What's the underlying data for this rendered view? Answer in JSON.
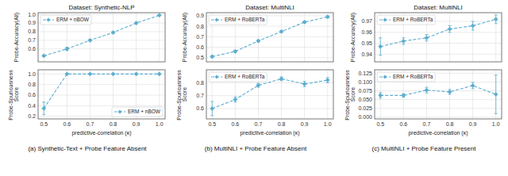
{
  "chart_data": [
    {
      "type": "line",
      "title": "Dataset: Synthetic-NLP",
      "x": [
        0.5,
        0.6,
        0.7,
        0.8,
        0.9,
        1.0
      ],
      "xlim": [
        0.475,
        1.025
      ],
      "xticks": [
        0.5,
        0.6,
        0.7,
        0.8,
        0.9,
        {
          "value": 1.0,
          "label": "1.0"
        }
      ],
      "ylabel": "Probe-Accuracy(All)",
      "ylim": [
        0.45,
        1.02
      ],
      "yticks": [
        0.6,
        0.7,
        0.8,
        0.9,
        {
          "value": 1.0,
          "label": "1.0"
        }
      ],
      "grid": true,
      "legend": "upper left",
      "tick_labels": "y",
      "series": [
        {
          "name": "ERM + nBOW",
          "color": "#5badcf",
          "marker": "diamond",
          "line_style": "dashed",
          "values": [
            0.52,
            0.6,
            0.7,
            0.79,
            0.9,
            0.99
          ],
          "errors": [
            0.01,
            0.02,
            0.01,
            0.01,
            0.01,
            0.005
          ]
        }
      ]
    },
    {
      "type": "line",
      "x": [
        0.5,
        0.6,
        0.7,
        0.8,
        0.9,
        1.0
      ],
      "xlim": [
        0.475,
        1.025
      ],
      "xticks": [
        0.5,
        0.6,
        0.7,
        0.8,
        0.9,
        {
          "value": 1.0,
          "label": "1.0"
        }
      ],
      "xlabel": "predictive-correlation (κ)",
      "ylabel": "Probe-Spuriousness Score",
      "ylim": [
        0.15,
        1.08
      ],
      "yticks": [
        0.2,
        0.4,
        0.6,
        0.8,
        {
          "value": 1.0,
          "label": "1.0"
        }
      ],
      "grid": true,
      "legend": "lower right",
      "annotations": [
        "(a) Synthetic-Text + Probe Feature Absent"
      ],
      "series": [
        {
          "name": "ERM + nBOW",
          "color": "#5badcf",
          "marker": "diamond",
          "line_style": "dashed",
          "values": [
            0.35,
            1.0,
            1.0,
            1.0,
            1.0,
            1.0
          ],
          "errors": [
            0.12,
            0.0,
            0.0,
            0.0,
            0.0,
            0.0
          ]
        }
      ]
    },
    {
      "type": "line",
      "title": "Dataset: MultiNLI",
      "x": [
        0.5,
        0.6,
        0.7,
        0.8,
        0.9,
        1.0
      ],
      "xlim": [
        0.475,
        1.025
      ],
      "xticks": [
        0.5,
        0.6,
        0.7,
        0.8,
        0.9,
        {
          "value": 1.0,
          "label": "1.0"
        }
      ],
      "ylabel": "Probe-Accuracy(All)",
      "ylim": [
        0.46,
        0.93
      ],
      "yticks": [
        0.5,
        0.6,
        0.7,
        0.8,
        0.9
      ],
      "grid": true,
      "legend": "upper left",
      "tick_labels": "y",
      "series": [
        {
          "name": "ERM + RoBERTa",
          "color": "#5badcf",
          "marker": "diamond",
          "line_style": "dashed",
          "values": [
            0.51,
            0.56,
            0.66,
            0.75,
            0.84,
            0.89
          ],
          "errors": [
            0.01,
            0.01,
            0.01,
            0.01,
            0.01,
            0.01
          ]
        }
      ]
    },
    {
      "type": "line",
      "x": [
        0.5,
        0.6,
        0.7,
        0.8,
        0.9,
        1.0
      ],
      "xlim": [
        0.475,
        1.025
      ],
      "xticks": [
        0.5,
        0.6,
        0.7,
        0.8,
        0.9,
        {
          "value": 1.0,
          "label": "1.0"
        }
      ],
      "xlabel": "predictive-correlation (κ)",
      "ylabel": "Probe-Spuriousness Score",
      "ylim": [
        0.52,
        0.9
      ],
      "yticks": [
        0.6,
        0.7,
        0.8
      ],
      "grid": true,
      "legend": "upper left",
      "annotations": [
        "(b) MultiNLI + Probe Feature Absent"
      ],
      "series": [
        {
          "name": "ERM + RoBERTa",
          "color": "#5badcf",
          "marker": "diamond",
          "line_style": "dashed",
          "values": [
            0.6,
            0.67,
            0.78,
            0.83,
            0.79,
            0.82
          ],
          "errors": [
            0.055,
            0.02,
            0.015,
            0.015,
            0.02,
            0.02
          ]
        }
      ]
    },
    {
      "type": "line",
      "title": "Dataset: MultiNLI",
      "x": [
        0.5,
        0.6,
        0.7,
        0.8,
        0.9,
        1.0
      ],
      "xlim": [
        0.475,
        1.025
      ],
      "xticks": [
        0.5,
        0.6,
        0.7,
        0.8,
        0.9,
        {
          "value": 1.0,
          "label": "1.0"
        }
      ],
      "ylabel": "Probe-Accuracy(All)",
      "ylim": [
        0.933,
        0.978
      ],
      "yticks": [
        0.94,
        0.95,
        0.96,
        0.97
      ],
      "grid": true,
      "legend": "upper left",
      "tick_labels": "y",
      "series": [
        {
          "name": "ERM + RoBERTa",
          "color": "#5badcf",
          "marker": "diamond",
          "line_style": "dashed",
          "values": [
            0.947,
            0.952,
            0.955,
            0.963,
            0.966,
            0.972
          ],
          "errors": [
            0.008,
            0.003,
            0.003,
            0.003,
            0.004,
            0.004
          ]
        }
      ]
    },
    {
      "type": "line",
      "x": [
        0.5,
        0.6,
        0.7,
        0.8,
        0.9,
        1.0
      ],
      "xlim": [
        0.475,
        1.025
      ],
      "xticks": [
        0.5,
        0.6,
        0.7,
        0.8,
        0.9,
        {
          "value": 1.0,
          "label": "1.0"
        }
      ],
      "xlabel": "predictive-correlation (κ)",
      "ylabel": "Probe-Spuriousness Score",
      "ylim": [
        -0.005,
        0.135
      ],
      "yticks": [
        {
          "value": 0,
          "label": "0.000"
        },
        0.025,
        {
          "value": 0.05,
          "label": "0.050"
        },
        0.075,
        {
          "value": 0.1,
          "label": "0.100"
        },
        0.125
      ],
      "grid": true,
      "legend": "upper left",
      "annotations": [
        "(c) MultiNLI + Probe Feature Present"
      ],
      "series": [
        {
          "name": "ERM + RoBERTa",
          "color": "#5badcf",
          "marker": "diamond",
          "line_style": "dashed",
          "values": [
            0.062,
            0.062,
            0.077,
            0.072,
            0.09,
            0.065
          ],
          "errors": [
            0.008,
            0.005,
            0.008,
            0.007,
            0.009,
            0.055
          ]
        }
      ]
    }
  ]
}
